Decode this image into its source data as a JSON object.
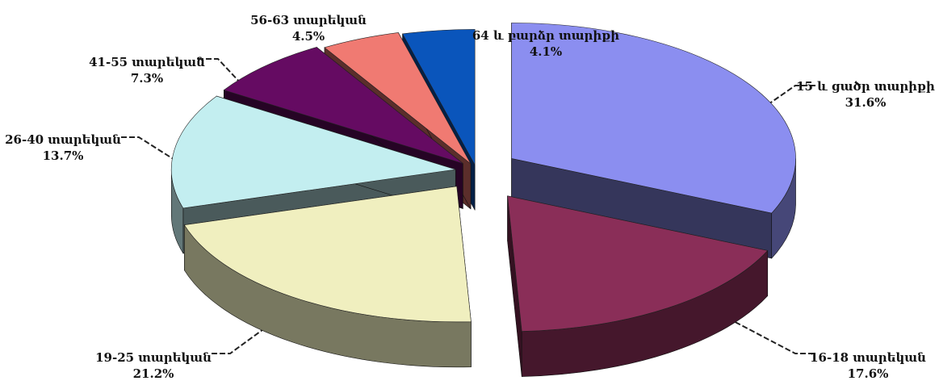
{
  "chart_data": {
    "type": "pie",
    "style": "3d-exploded",
    "title": "",
    "legend": "none",
    "slices": [
      {
        "label": "15 և ցածր տարիքի",
        "value": 31.6,
        "value_text": "31.6%",
        "color": "#8b8ef0"
      },
      {
        "label": "16-18 տարեկան",
        "value": 17.6,
        "value_text": "17.6%",
        "color": "#8a2e58"
      },
      {
        "label": "19-25 տարեկան",
        "value": 21.2,
        "value_text": "21.2%",
        "color": "#f0efbf"
      },
      {
        "label": "26-40 տարեկան",
        "value": 13.7,
        "value_text": "13.7%",
        "color": "#c3eef0"
      },
      {
        "label": "41-55 տարեկան",
        "value": 7.3,
        "value_text": "7.3%",
        "color": "#650b62"
      },
      {
        "label": "56-63 տարեկան",
        "value": 4.5,
        "value_text": "4.5%",
        "color": "#f07a72"
      },
      {
        "label": "64 և բարձր տարիքի",
        "value": 4.1,
        "value_text": "4.1%",
        "color": "#0a55bb"
      }
    ]
  }
}
